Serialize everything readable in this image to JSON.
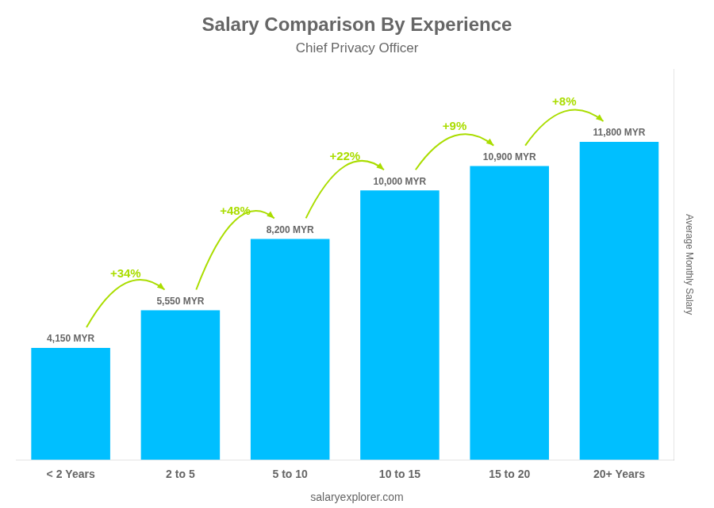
{
  "chart_data": {
    "type": "bar",
    "title": "Salary Comparison By Experience",
    "subtitle": "Chief Privacy Officer",
    "ylabel": "Average Monthly Salary",
    "footer": "salaryexplorer.com",
    "categories": [
      "< 2 Years",
      "2 to 5",
      "5 to 10",
      "10 to 15",
      "15 to 20",
      "20+ Years"
    ],
    "values": [
      4150,
      5550,
      8200,
      10000,
      10900,
      11800
    ],
    "value_labels": [
      "4,150 MYR",
      "5,550 MYR",
      "8,200 MYR",
      "10,000 MYR",
      "10,900 MYR",
      "11,800 MYR"
    ],
    "data_labels": true,
    "color": "#00bfff",
    "ylim": [
      0,
      14500
    ],
    "grid": false,
    "tick_labels": "x",
    "annotations": [
      {
        "text": "+34%",
        "from": "< 2 Years",
        "to": "2 to 5",
        "color": "#aadd00"
      },
      {
        "text": "+48%",
        "from": "2 to 5",
        "to": "5 to 10",
        "color": "#aadd00"
      },
      {
        "text": "+22%",
        "from": "5 to 10",
        "to": "10 to 15",
        "color": "#aadd00"
      },
      {
        "text": "+9%",
        "from": "10 to 15",
        "to": "15 to 20",
        "color": "#aadd00"
      },
      {
        "text": "+8%",
        "from": "15 to 20",
        "to": "20+ Years",
        "color": "#aadd00"
      }
    ]
  }
}
